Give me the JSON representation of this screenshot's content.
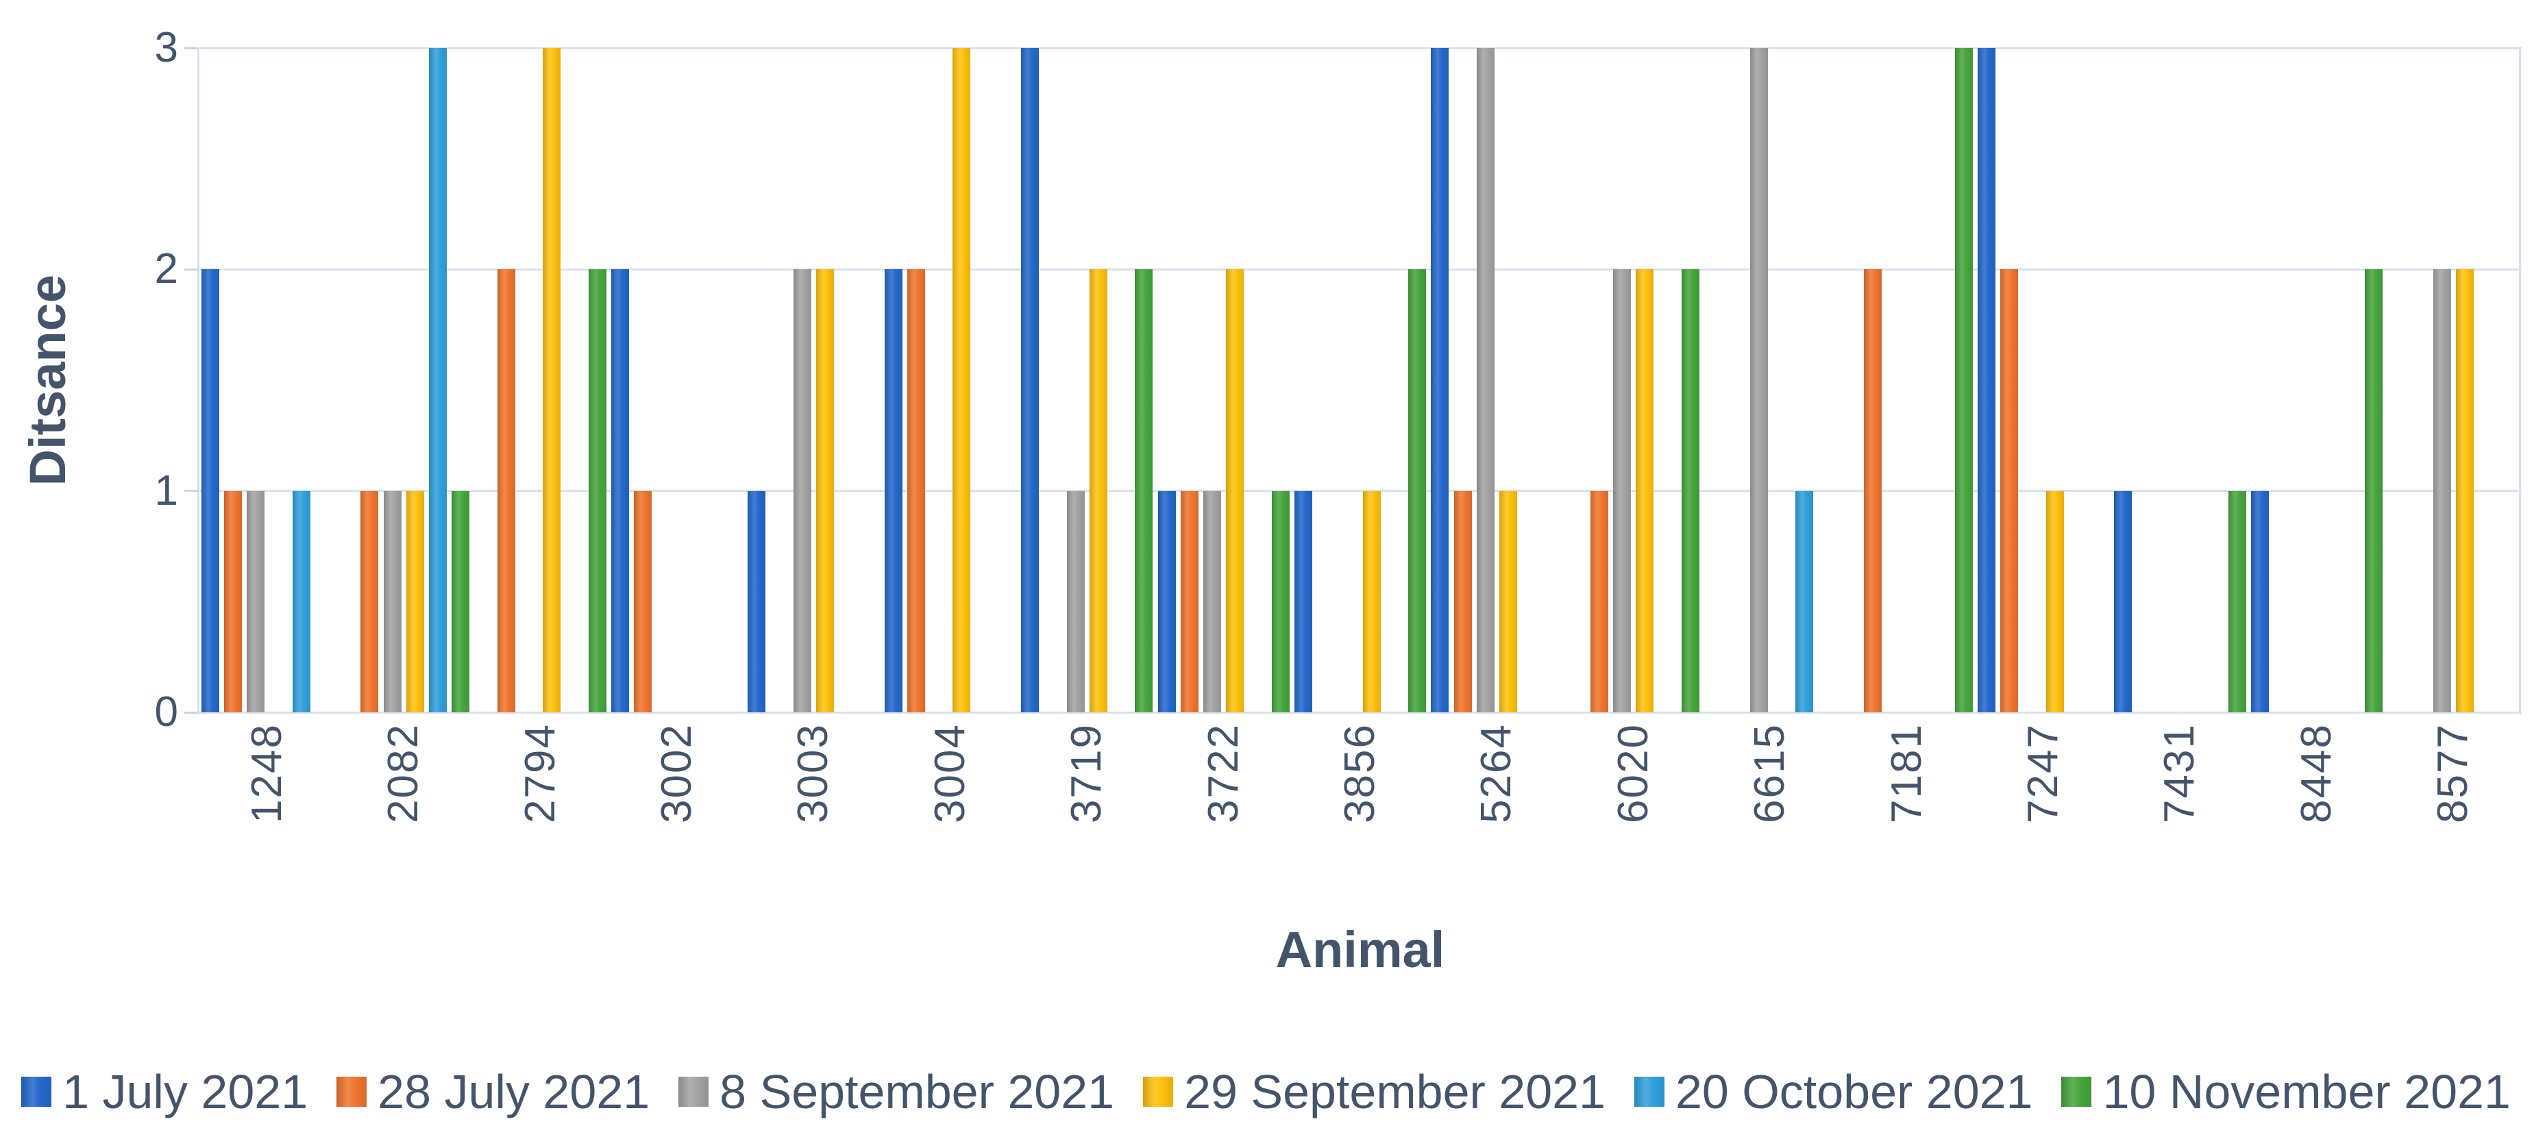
{
  "figure": {
    "background": "#ffffff",
    "text_color": "#44546A",
    "gridline_color": "#D8E1ED"
  },
  "chart_data": {
    "type": "bar",
    "title": "",
    "xlabel": "Animal",
    "ylabel": "Ditsance",
    "ylim": [
      0,
      3
    ],
    "yticks": [
      0,
      1,
      2,
      3
    ],
    "grid": true,
    "legend_position": "bottom",
    "categories": [
      "1248",
      "2082",
      "2794",
      "3002",
      "3003",
      "3004",
      "3719",
      "3722",
      "3856",
      "5264",
      "6020",
      "6615",
      "7181",
      "7247",
      "7431",
      "8448",
      "8577"
    ],
    "series": [
      {
        "name": "1 July 2021",
        "color": "#2569CC",
        "values": [
          2,
          0,
          0,
          2,
          1,
          2,
          3,
          1,
          1,
          3,
          0,
          0,
          0,
          3,
          1,
          1,
          0
        ]
      },
      {
        "name": "28 July 2021",
        "color": "#F0762F",
        "values": [
          1,
          1,
          2,
          1,
          0,
          2,
          0,
          1,
          0,
          1,
          1,
          0,
          2,
          2,
          0,
          0,
          0
        ]
      },
      {
        "name": "8 September 2021",
        "color": "#A3A3A3",
        "values": [
          1,
          1,
          0,
          0,
          2,
          0,
          1,
          1,
          0,
          3,
          2,
          3,
          0,
          0,
          0,
          0,
          2
        ]
      },
      {
        "name": "29 September 2021",
        "color": "#FEC10E",
        "values": [
          0,
          1,
          3,
          0,
          2,
          3,
          2,
          2,
          1,
          1,
          2,
          0,
          0,
          1,
          0,
          0,
          2
        ]
      },
      {
        "name": "20 October 2021",
        "color": "#31A1DC",
        "values": [
          1,
          3,
          0,
          0,
          0,
          0,
          0,
          0,
          0,
          0,
          0,
          1,
          0,
          0,
          0,
          0,
          0
        ]
      },
      {
        "name": "10 November 2021",
        "color": "#47A63E",
        "values": [
          0,
          1,
          2,
          0,
          0,
          0,
          2,
          1,
          2,
          0,
          2,
          0,
          3,
          0,
          1,
          2,
          0
        ]
      }
    ]
  }
}
